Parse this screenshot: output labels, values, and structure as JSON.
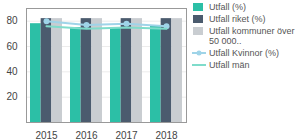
{
  "chart_data": {
    "type": "bar",
    "categories": [
      "2015",
      "2016",
      "2017",
      "2018"
    ],
    "series": [
      {
        "name": "Utfall (%)",
        "type": "bar",
        "color": "#2cbfa6",
        "values": [
          78,
          75,
          75,
          76
        ]
      },
      {
        "name": "Utfall riket (%)",
        "type": "bar",
        "color": "#4b5b6e",
        "values": [
          82,
          82,
          82,
          82
        ]
      },
      {
        "name": "Utfall kommuner över 50 000..",
        "type": "bar",
        "color": "#c9cdd1",
        "values": [
          82,
          82,
          82,
          82
        ]
      },
      {
        "name": "Utfall Kvinnor (%)",
        "type": "line",
        "color": "#9fd4e8",
        "marker": "circle",
        "values": [
          80,
          77,
          78,
          76
        ]
      },
      {
        "name": "Utfall män",
        "type": "line",
        "color": "#7fdccb",
        "values": [
          76,
          74,
          75,
          74
        ]
      }
    ],
    "ylim": [
      0,
      90
    ],
    "yticks": [
      20,
      40,
      60,
      80
    ],
    "grid": true,
    "legend": "right"
  }
}
